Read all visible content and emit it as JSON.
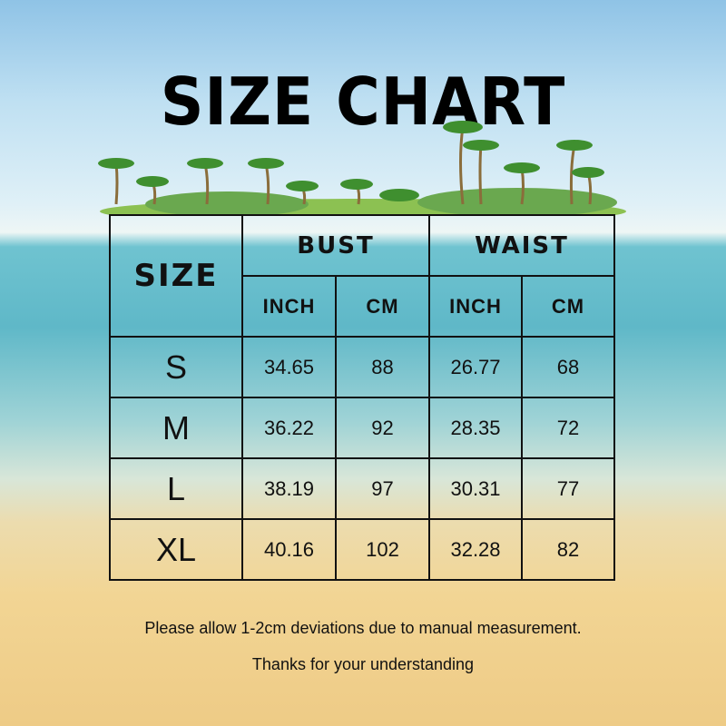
{
  "title": "SIZE CHART",
  "table": {
    "size_header": "SIZE",
    "groups": [
      "BUST",
      "WAIST"
    ],
    "units": [
      "INCH",
      "CM",
      "INCH",
      "CM"
    ],
    "rows": [
      {
        "size": "S",
        "values": [
          "34.65",
          "88",
          "26.77",
          "68"
        ]
      },
      {
        "size": "M",
        "values": [
          "36.22",
          "92",
          "28.35",
          "72"
        ]
      },
      {
        "size": "L",
        "values": [
          "38.19",
          "97",
          "30.31",
          "77"
        ]
      },
      {
        "size": "XL",
        "values": [
          "40.16",
          "102",
          "32.28",
          "82"
        ]
      }
    ]
  },
  "notes": [
    "Please allow 1-2cm deviations due to manual measurement.",
    "Thanks for your understanding"
  ],
  "decoration": "palm-tree-island"
}
